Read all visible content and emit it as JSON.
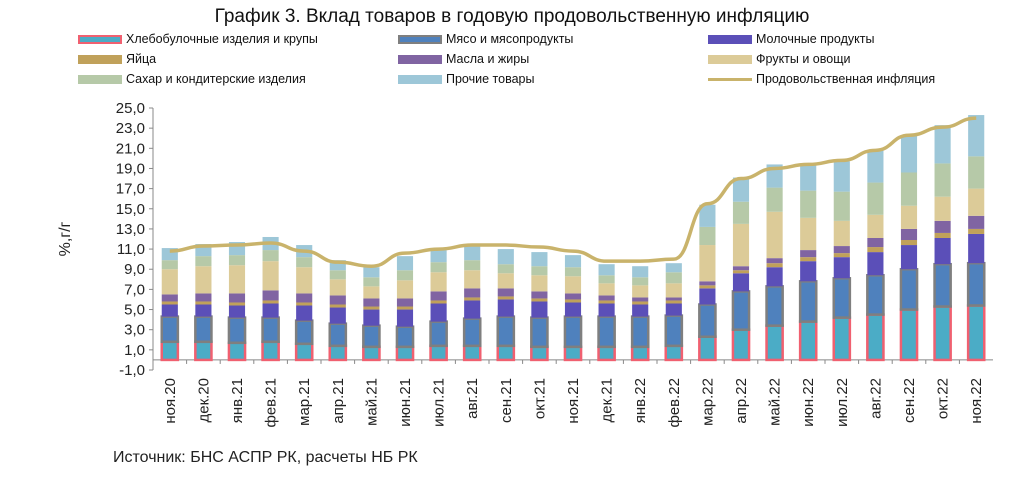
{
  "title": "График 3. Вклад товаров в годовую продовольственную инфляцию",
  "source": "Источник: БНС АСПР РК, расчеты НБ РК",
  "chart_data": {
    "type": "bar",
    "stacked": true,
    "ylabel": "%,г/г",
    "ylim": [
      -1,
      25
    ],
    "yticks": [
      "-1,0",
      "1,0",
      "3,0",
      "5,0",
      "7,0",
      "9,0",
      "11,0",
      "13,0",
      "15,0",
      "17,0",
      "19,0",
      "21,0",
      "23,0",
      "25,0"
    ],
    "categories": [
      "ноя.20",
      "дек.20",
      "янв.21",
      "фев.21",
      "мар.21",
      "апр.21",
      "май.21",
      "июн.21",
      "июл.21",
      "авг.21",
      "сен.21",
      "окт.21",
      "ноя.21",
      "дек.21",
      "янв.22",
      "фев.22",
      "мар.22",
      "апр.22",
      "май.22",
      "июн.22",
      "июл.22",
      "авг.22",
      "сен.22",
      "окт.22",
      "ноя.22"
    ],
    "series": [
      {
        "name": "Хлебобулочные изделия и крупы",
        "color": "#4bacc6",
        "border": "#f06070",
        "values": [
          1.8,
          1.8,
          1.7,
          1.8,
          1.6,
          1.4,
          1.3,
          1.3,
          1.4,
          1.4,
          1.4,
          1.3,
          1.3,
          1.3,
          1.3,
          1.4,
          2.3,
          3.0,
          3.4,
          3.8,
          4.2,
          4.5,
          5.0,
          5.3,
          5.4
        ]
      },
      {
        "name": "Мясо и мясопродукты",
        "color": "#4f81bd",
        "border": "#7f7f7f",
        "values": [
          2.5,
          2.5,
          2.5,
          2.4,
          2.3,
          2.2,
          2.1,
          2.0,
          2.4,
          2.7,
          2.9,
          2.9,
          3.0,
          3.0,
          3.0,
          3.0,
          3.2,
          3.8,
          3.9,
          4.0,
          3.9,
          3.9,
          4.0,
          4.2,
          4.2
        ]
      },
      {
        "name": "Молочные продукты",
        "color": "#5b4fb8",
        "border": "",
        "values": [
          1.2,
          1.2,
          1.2,
          1.4,
          1.5,
          1.6,
          1.6,
          1.7,
          1.8,
          1.8,
          1.7,
          1.6,
          1.4,
          1.3,
          1.2,
          1.2,
          1.6,
          1.8,
          1.9,
          2.0,
          2.1,
          2.3,
          2.4,
          2.6,
          2.9
        ]
      },
      {
        "name": "Яйца",
        "color": "#c0a15a",
        "border": "",
        "values": [
          0.3,
          0.3,
          0.3,
          0.3,
          0.3,
          0.3,
          0.3,
          0.3,
          0.3,
          0.3,
          0.3,
          0.3,
          0.3,
          0.3,
          0.3,
          0.3,
          0.3,
          0.3,
          0.4,
          0.4,
          0.4,
          0.5,
          0.5,
          0.5,
          0.5
        ]
      },
      {
        "name": "Масла и жиры",
        "color": "#8064a2",
        "border": "",
        "values": [
          0.7,
          0.8,
          0.9,
          1.0,
          0.9,
          0.9,
          0.8,
          0.8,
          0.9,
          0.9,
          0.8,
          0.7,
          0.6,
          0.5,
          0.4,
          0.3,
          0.4,
          0.4,
          0.5,
          0.7,
          0.7,
          0.9,
          1.1,
          1.2,
          1.3
        ]
      },
      {
        "name": "Фрукты и овощи",
        "color": "#dccb98",
        "border": "",
        "values": [
          2.5,
          2.7,
          2.8,
          2.9,
          2.6,
          1.6,
          1.2,
          1.8,
          1.9,
          1.8,
          1.5,
          1.6,
          1.7,
          1.2,
          1.2,
          1.4,
          3.6,
          4.2,
          4.6,
          3.2,
          2.5,
          2.3,
          2.3,
          2.4,
          2.7
        ]
      },
      {
        "name": "Сахар и кондитерские изделия",
        "color": "#b6c9a8",
        "border": "",
        "values": [
          0.9,
          1.0,
          1.0,
          1.1,
          1.0,
          0.9,
          0.9,
          1.0,
          1.0,
          1.0,
          0.9,
          0.9,
          0.9,
          0.8,
          0.8,
          1.1,
          1.8,
          2.2,
          2.4,
          2.7,
          2.9,
          3.2,
          3.3,
          3.3,
          3.2
        ]
      },
      {
        "name": "Прочие товары",
        "color": "#9dc7d8",
        "border": "",
        "values": [
          1.2,
          1.2,
          1.3,
          1.3,
          1.2,
          1.0,
          1.0,
          1.4,
          1.2,
          1.5,
          1.5,
          1.4,
          1.2,
          1.1,
          1.1,
          0.9,
          2.2,
          2.4,
          2.3,
          2.7,
          3.0,
          3.2,
          3.7,
          3.8,
          4.1
        ]
      }
    ],
    "line": {
      "name": "Продовольственная инфляция",
      "color": "#c9b36b",
      "values": [
        10.8,
        11.3,
        11.4,
        11.6,
        10.8,
        9.7,
        9.3,
        10.6,
        11.0,
        11.4,
        11.4,
        11.2,
        10.8,
        9.8,
        9.8,
        10.0,
        15.5,
        18.0,
        19.0,
        19.4,
        19.8,
        20.8,
        22.3,
        23.1,
        24.0
      ]
    },
    "legend_position": "top"
  }
}
